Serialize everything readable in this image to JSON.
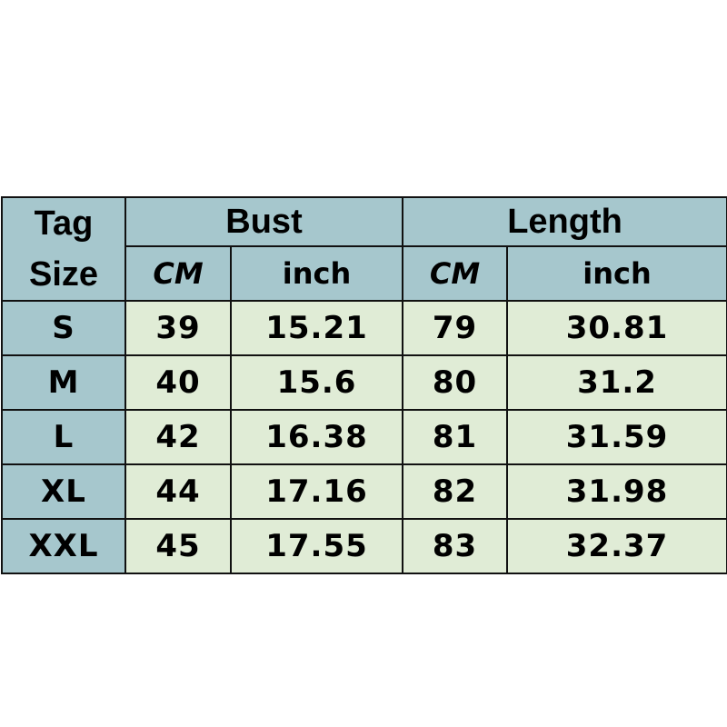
{
  "headers": {
    "tag_size": [
      "Tag",
      "Size"
    ],
    "bust": "Bust",
    "length": "Length",
    "cm": "CM",
    "inch": "inch"
  },
  "colors": {
    "header_bg": "#a6c7cd",
    "data_bg": "#e0ecd6",
    "border": "#111111"
  },
  "rows": [
    {
      "size": "S",
      "bust_cm": "39",
      "bust_inch": "15.21",
      "length_cm": "79",
      "length_inch": "30.81"
    },
    {
      "size": "M",
      "bust_cm": "40",
      "bust_inch": "15.6",
      "length_cm": "80",
      "length_inch": "31.2"
    },
    {
      "size": "L",
      "bust_cm": "42",
      "bust_inch": "16.38",
      "length_cm": "81",
      "length_inch": "31.59"
    },
    {
      "size": "XL",
      "bust_cm": "44",
      "bust_inch": "17.16",
      "length_cm": "82",
      "length_inch": "31.98"
    },
    {
      "size": "XXL",
      "bust_cm": "45",
      "bust_inch": "17.55",
      "length_cm": "83",
      "length_inch": "32.37"
    }
  ]
}
